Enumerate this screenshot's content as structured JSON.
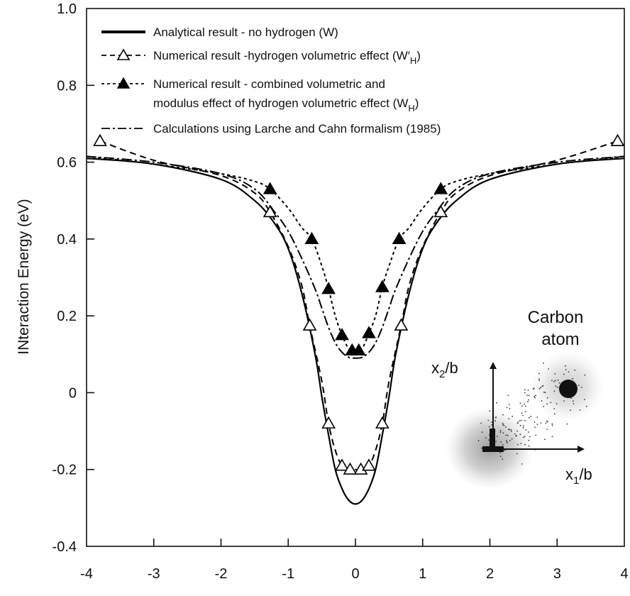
{
  "chart_data": {
    "type": "line",
    "title": "",
    "xlabel": "",
    "ylabel": "INteraction Energy  (eV)",
    "xlim": [
      -4,
      4
    ],
    "ylim": [
      -0.4,
      1.0
    ],
    "xticks": [
      -4,
      -3,
      -2,
      -1,
      0,
      1,
      2,
      3,
      4
    ],
    "yticks": [
      -0.4,
      -0.2,
      0,
      0.2,
      0.4,
      0.6,
      0.8,
      1.0
    ],
    "xtick_labels": [
      "-4",
      "-3",
      "-2",
      "-1",
      "0",
      "1",
      "2",
      "3",
      "4"
    ],
    "ytick_labels": [
      "-0.4",
      "-0.2",
      "0",
      "0.2",
      "0.4",
      "0.6",
      "0.8",
      "1.0"
    ],
    "grid": false,
    "legend_position": "top-center",
    "series": [
      {
        "name": "Analytical result - no hydrogen (W)",
        "style": "solid",
        "x": [
          -4,
          -3,
          -2,
          -1.5,
          -1.2,
          -1.0,
          -0.8,
          -0.6,
          -0.5,
          -0.4,
          -0.3,
          -0.2,
          -0.1,
          0,
          0.1,
          0.2,
          0.3,
          0.4,
          0.5,
          0.6,
          0.8,
          1.0,
          1.2,
          1.5,
          2,
          3,
          4
        ],
        "y": [
          0.61,
          0.595,
          0.555,
          0.5,
          0.44,
          0.375,
          0.26,
          0.1,
          -0.01,
          -0.11,
          -0.2,
          -0.25,
          -0.28,
          -0.29,
          -0.28,
          -0.25,
          -0.2,
          -0.11,
          -0.01,
          0.1,
          0.26,
          0.375,
          0.44,
          0.5,
          0.555,
          0.595,
          0.61
        ]
      },
      {
        "name": "Numerical result -hydrogen volumetric effect (W′H)",
        "style": "dashed",
        "marker": "open-triangle",
        "x": [
          -3.8,
          -3,
          -2,
          -1.5,
          -1.27,
          -1.0,
          -0.8,
          -0.68,
          -0.5,
          -0.4,
          -0.3,
          -0.2,
          -0.08,
          0,
          0.08,
          0.2,
          0.3,
          0.4,
          0.5,
          0.68,
          0.8,
          1.0,
          1.27,
          1.5,
          2,
          3,
          3.9
        ],
        "y": [
          0.655,
          0.605,
          0.565,
          0.52,
          0.47,
          0.38,
          0.28,
          0.175,
          0.03,
          -0.08,
          -0.15,
          -0.19,
          -0.2,
          -0.2,
          -0.2,
          -0.19,
          -0.15,
          -0.08,
          0.03,
          0.175,
          0.28,
          0.38,
          0.47,
          0.52,
          0.565,
          0.605,
          0.655
        ],
        "markers_x": [
          -3.8,
          -1.27,
          -0.68,
          -0.4,
          -0.2,
          -0.08,
          0.08,
          0.2,
          0.4,
          0.68,
          1.27,
          3.9
        ],
        "markers_y": [
          0.655,
          0.47,
          0.175,
          -0.08,
          -0.19,
          -0.2,
          -0.2,
          -0.19,
          -0.08,
          0.175,
          0.47,
          0.655
        ]
      },
      {
        "name": "Numerical result - combined volumetric and modulus effect of hydrogen volumetric effect (WH)",
        "style": "dotted",
        "marker": "filled-triangle",
        "x": [
          -4,
          -3,
          -2,
          -1.5,
          -1.27,
          -1.0,
          -0.8,
          -0.65,
          -0.5,
          -0.4,
          -0.3,
          -0.2,
          -0.1,
          0,
          0.1,
          0.2,
          0.3,
          0.4,
          0.5,
          0.65,
          0.8,
          1.0,
          1.27,
          1.5,
          2,
          3,
          4
        ],
        "y": [
          0.615,
          0.595,
          0.57,
          0.55,
          0.53,
          0.48,
          0.43,
          0.4,
          0.33,
          0.27,
          0.2,
          0.15,
          0.115,
          0.11,
          0.115,
          0.155,
          0.2,
          0.275,
          0.33,
          0.4,
          0.43,
          0.48,
          0.53,
          0.55,
          0.57,
          0.595,
          0.615
        ],
        "markers_x": [
          -1.27,
          -0.65,
          -0.4,
          -0.2,
          -0.05,
          0.05,
          0.2,
          0.4,
          0.65,
          1.27
        ],
        "markers_y": [
          0.53,
          0.4,
          0.27,
          0.15,
          0.11,
          0.11,
          0.155,
          0.275,
          0.4,
          0.53
        ]
      },
      {
        "name": "Calculations using Larche and Cahn formalism (1985)",
        "style": "dash-dot",
        "x": [
          -4,
          -3,
          -2,
          -1.5,
          -1.2,
          -1.0,
          -0.8,
          -0.6,
          -0.5,
          -0.4,
          -0.3,
          -0.2,
          -0.1,
          0,
          0.1,
          0.2,
          0.3,
          0.4,
          0.5,
          0.6,
          0.8,
          1.0,
          1.2,
          1.5,
          2,
          3,
          4
        ],
        "y": [
          0.615,
          0.6,
          0.57,
          0.53,
          0.47,
          0.42,
          0.35,
          0.27,
          0.22,
          0.17,
          0.13,
          0.105,
          0.092,
          0.09,
          0.092,
          0.105,
          0.13,
          0.17,
          0.22,
          0.27,
          0.35,
          0.42,
          0.47,
          0.53,
          0.57,
          0.6,
          0.615
        ]
      }
    ]
  },
  "legend": [
    {
      "text": "Analytical result - no hydrogen (W)",
      "style": "solid"
    },
    {
      "text": "Numerical result -hydrogen volumetric effect (W′",
      "sub": "H",
      "suffix": ")",
      "style": "dashed",
      "marker": "open-triangle"
    },
    {
      "text": "Numerical result - combined volumetric and",
      "line2": "modulus effect of hydrogen volumetric effect (W",
      "sub": "H",
      "suffix": ")",
      "style": "dotted",
      "marker": "filled-triangle"
    },
    {
      "text": "Calculations using Larche and Cahn formalism (1985)",
      "style": "dash-dot"
    }
  ],
  "inset": {
    "carbon_label_1": "Carbon",
    "carbon_label_2": "atom",
    "x1_label": "x",
    "x1_sub": "1",
    "x1_suffix": "/b",
    "x2_label": "x",
    "x2_sub": "2",
    "x2_suffix": "/b"
  },
  "colors": {
    "line": "#000000",
    "background": "#ffffff",
    "halo": "#9a9a9a"
  }
}
